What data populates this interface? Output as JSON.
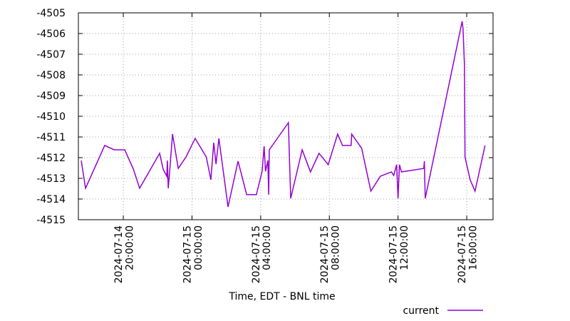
{
  "chart_data": {
    "type": "line",
    "xlabel": "Time, EDT - BNL time",
    "x": [
      "2024-07-14 17:33",
      "2024-07-14 17:48",
      "2024-07-14 18:55",
      "2024-07-14 19:28",
      "2024-07-14 20:05",
      "2024-07-14 20:35",
      "2024-07-14 20:57",
      "2024-07-14 22:07",
      "2024-07-14 22:19",
      "2024-07-14 22:32",
      "2024-07-14 22:34",
      "2024-07-14 22:37",
      "2024-07-14 22:42",
      "2024-07-14 22:52",
      "2024-07-14 23:12",
      "2024-07-14 23:39",
      "2024-07-15 00:11",
      "2024-07-15 00:50",
      "2024-07-15 01:06",
      "2024-07-15 01:16",
      "2024-07-15 01:24",
      "2024-07-15 01:34",
      "2024-07-15 02:06",
      "2024-07-15 02:41",
      "2024-07-15 03:11",
      "2024-07-15 03:45",
      "2024-07-15 04:05",
      "2024-07-15 04:12",
      "2024-07-15 04:17",
      "2024-07-15 04:25",
      "2024-07-15 04:28",
      "2024-07-15 04:30",
      "2024-07-15 05:37",
      "2024-07-15 05:40",
      "2024-07-15 05:45",
      "2024-07-15 06:25",
      "2024-07-15 06:54",
      "2024-07-15 07:24",
      "2024-07-15 07:56",
      "2024-07-15 08:29",
      "2024-07-15 08:46",
      "2024-07-15 09:16",
      "2024-07-15 09:18",
      "2024-07-15 09:53",
      "2024-07-15 10:25",
      "2024-07-15 10:58",
      "2024-07-15 11:37",
      "2024-07-15 11:45",
      "2024-07-15 11:55",
      "2024-07-15 12:00",
      "2024-07-15 12:05",
      "2024-07-15 12:12",
      "2024-07-15 13:30",
      "2024-07-15 13:32",
      "2024-07-15 13:35",
      "2024-07-15 15:44",
      "2024-07-15 15:47",
      "2024-07-15 15:52",
      "2024-07-15 15:54",
      "2024-07-15 16:12",
      "2024-07-15 16:29",
      "2024-07-15 17:04"
    ],
    "series": [
      {
        "name": "current",
        "color": "#9400d3",
        "values": [
          -4512.14,
          -4513.48,
          -4511.41,
          -4511.62,
          -4511.62,
          -4512.55,
          -4513.48,
          -4511.79,
          -4512.55,
          -4512.9,
          -4512.14,
          -4513.48,
          -4512.66,
          -4510.86,
          -4512.52,
          -4511.97,
          -4511.07,
          -4511.97,
          -4513.07,
          -4511.28,
          -4512.31,
          -4511.07,
          -4514.38,
          -4512.17,
          -4513.79,
          -4513.79,
          -4512.66,
          -4511.45,
          -4512.66,
          -4512.14,
          -4513.79,
          -4511.62,
          -4510.31,
          -4511.79,
          -4513.97,
          -4511.62,
          -4512.69,
          -4511.79,
          -4512.34,
          -4510.86,
          -4511.41,
          -4511.41,
          -4510.86,
          -4511.55,
          -4513.62,
          -4512.9,
          -4512.69,
          -4512.86,
          -4512.34,
          -4513.97,
          -4512.34,
          -4512.69,
          -4512.52,
          -4512.17,
          -4513.97,
          -4505.41,
          -4505.76,
          -4507.48,
          -4511.97,
          -4513.07,
          -4513.62,
          -4511.41
        ]
      }
    ],
    "xlim": [
      "2024-07-14 17:23",
      "2024-07-15 17:32"
    ],
    "xticks": [
      {
        "value": "2024-07-14 20:00",
        "label": "2024-07-14\n20:00:00"
      },
      {
        "value": "2024-07-15 00:00",
        "label": "2024-07-15\n00:00:00"
      },
      {
        "value": "2024-07-15 04:00",
        "label": "2024-07-15\n04:00:00"
      },
      {
        "value": "2024-07-15 08:00",
        "label": "2024-07-15\n08:00:00"
      },
      {
        "value": "2024-07-15 12:00",
        "label": "2024-07-15\n12:00:00"
      },
      {
        "value": "2024-07-15 16:00",
        "label": "2024-07-15\n16:00:00"
      }
    ],
    "ylim": [
      -4515,
      -4505
    ],
    "yticks": [
      -4505,
      -4506,
      -4507,
      -4508,
      -4509,
      -4510,
      -4511,
      -4512,
      -4513,
      -4514,
      -4515
    ],
    "grid": true,
    "legend": "bottom-right"
  }
}
